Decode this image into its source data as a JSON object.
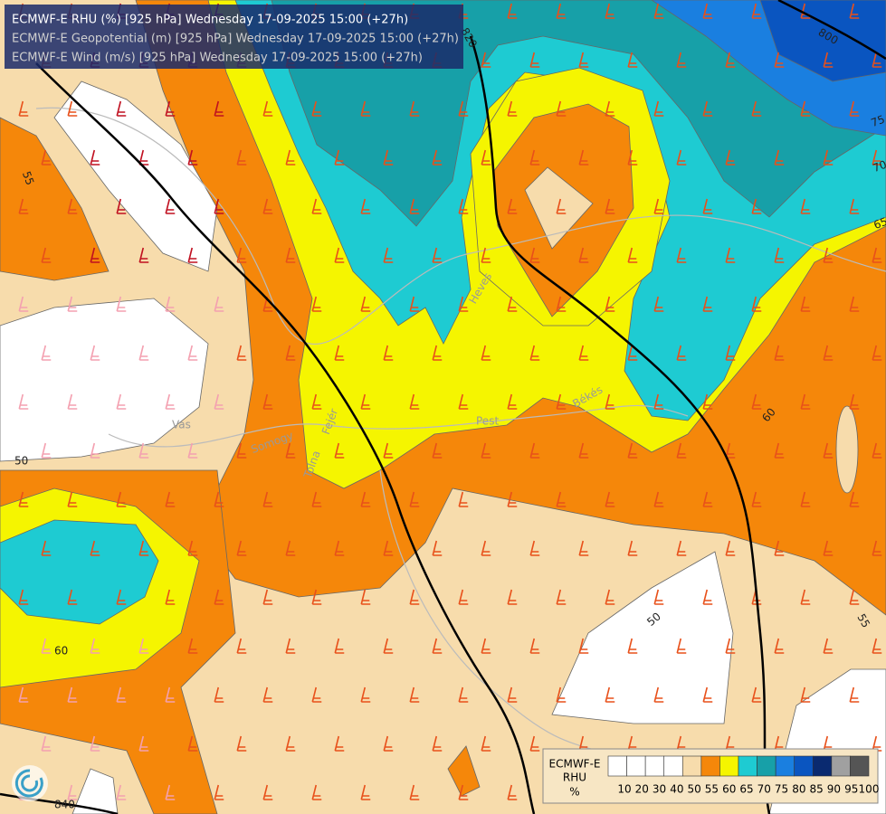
{
  "header": {
    "lines": [
      "ECMWF-E RHU (%) [925 hPa] Wednesday 17-09-2025 15:00 (+27h)",
      "ECMWF-E Geopotential (m) [925 hPa] Wednesday 17-09-2025 15:00 (+27h)",
      "ECMWF-E Wind (m/s) [925 hPa] Wednesday 17-09-2025 15:00 (+27h)"
    ]
  },
  "legend": {
    "title": [
      "ECMWF-E",
      "RHU",
      "%"
    ],
    "labels": [
      "10",
      "20",
      "30",
      "40",
      "50",
      "55",
      "60",
      "65",
      "70",
      "75",
      "80",
      "85",
      "90",
      "95",
      "100"
    ],
    "colors": [
      "#ffffff",
      "#ffffff",
      "#ffffff",
      "#ffffff",
      "#f7dcac",
      "#f5870a",
      "#f5f500",
      "#1ecbd2",
      "#17a0a8",
      "#1a7fe0",
      "#0a55c0",
      "#0a2a70",
      "#a0a0a0",
      "#555555"
    ]
  },
  "contour_labels": [
    "820",
    "800",
    "840",
    "55",
    "50",
    "60",
    "50",
    "55",
    "60",
    "65",
    "70",
    "75"
  ],
  "places": [
    "Heves",
    "Pest",
    "Békés",
    "Fejér",
    "Tolna",
    "Somogy",
    "Vas"
  ]
}
